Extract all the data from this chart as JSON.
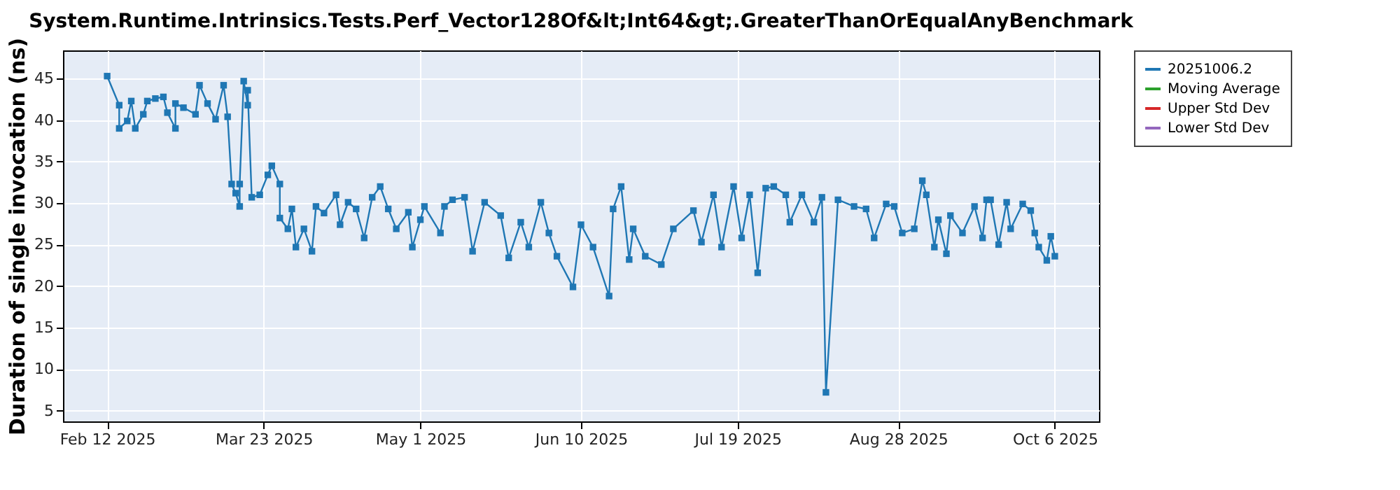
{
  "chart_data": {
    "type": "line",
    "title": "System.Runtime.Intrinsics.Tests.Perf_Vector128Of&lt;Int64&gt;.GreaterThanOrEqualAnyBenchmark",
    "ylabel": "Duration of single invocation (ns)",
    "x": [
      "2025-02-12",
      "2025-02-15",
      "2025-02-15",
      "2025-02-17",
      "2025-02-18",
      "2025-02-19",
      "2025-02-21",
      "2025-02-22",
      "2025-02-24",
      "2025-02-26",
      "2025-02-27",
      "2025-03-01",
      "2025-03-01",
      "2025-03-03",
      "2025-03-06",
      "2025-03-07",
      "2025-03-09",
      "2025-03-11",
      "2025-03-13",
      "2025-03-14",
      "2025-03-15",
      "2025-03-16",
      "2025-03-17",
      "2025-03-17",
      "2025-03-18",
      "2025-03-19",
      "2025-03-19",
      "2025-03-20",
      "2025-03-22",
      "2025-03-24",
      "2025-03-25",
      "2025-03-27",
      "2025-03-27",
      "2025-03-29",
      "2025-03-30",
      "2025-03-31",
      "2025-04-02",
      "2025-04-04",
      "2025-04-05",
      "2025-04-07",
      "2025-04-10",
      "2025-04-11",
      "2025-04-13",
      "2025-04-15",
      "2025-04-17",
      "2025-04-19",
      "2025-04-21",
      "2025-04-23",
      "2025-04-25",
      "2025-04-28",
      "2025-04-29",
      "2025-05-01",
      "2025-05-02",
      "2025-05-06",
      "2025-05-07",
      "2025-05-09",
      "2025-05-12",
      "2025-05-14",
      "2025-05-17",
      "2025-05-21",
      "2025-05-23",
      "2025-05-26",
      "2025-05-28",
      "2025-05-31",
      "2025-06-02",
      "2025-06-04",
      "2025-06-08",
      "2025-06-10",
      "2025-06-13",
      "2025-06-17",
      "2025-06-18",
      "2025-06-20",
      "2025-06-22",
      "2025-06-23",
      "2025-06-26",
      "2025-06-30",
      "2025-07-03",
      "2025-07-08",
      "2025-07-10",
      "2025-07-13",
      "2025-07-15",
      "2025-07-18",
      "2025-07-20",
      "2025-07-22",
      "2025-07-24",
      "2025-07-26",
      "2025-07-28",
      "2025-07-31",
      "2025-08-01",
      "2025-08-04",
      "2025-08-07",
      "2025-08-09",
      "2025-08-10",
      "2025-08-13",
      "2025-08-17",
      "2025-08-20",
      "2025-08-22",
      "2025-08-25",
      "2025-08-27",
      "2025-08-29",
      "2025-09-01",
      "2025-09-03",
      "2025-09-04",
      "2025-09-06",
      "2025-09-07",
      "2025-09-09",
      "2025-09-10",
      "2025-09-13",
      "2025-09-16",
      "2025-09-18",
      "2025-09-19",
      "2025-09-20",
      "2025-09-22",
      "2025-09-24",
      "2025-09-25",
      "2025-09-28",
      "2025-09-30",
      "2025-10-01",
      "2025-10-02",
      "2025-10-04",
      "2025-10-05",
      "2025-10-06"
    ],
    "series": [
      {
        "name": "20251006.2",
        "color": "#1f77b4",
        "values": [
          45.3,
          41.8,
          39.0,
          39.9,
          42.3,
          39.0,
          40.7,
          42.3,
          42.6,
          42.8,
          40.9,
          39.0,
          42.0,
          41.5,
          40.7,
          44.2,
          42.0,
          40.1,
          44.2,
          40.4,
          32.3,
          31.2,
          29.6,
          32.3,
          44.7,
          41.8,
          43.6,
          30.7,
          31.0,
          33.4,
          34.5,
          32.3,
          28.2,
          26.9,
          29.3,
          24.7,
          26.9,
          24.2,
          29.6,
          28.8,
          31.0,
          27.4,
          30.1,
          29.3,
          25.8,
          30.7,
          32.0,
          29.3,
          26.9,
          28.9,
          24.7,
          28.0,
          29.6,
          26.4,
          29.6,
          30.4,
          30.7,
          24.2,
          30.1,
          28.5,
          23.4,
          27.7,
          24.7,
          30.1,
          26.4,
          23.6,
          19.9,
          27.4,
          24.7,
          18.8,
          29.3,
          32.0,
          23.2,
          26.9,
          23.6,
          22.6,
          26.9,
          29.1,
          25.3,
          31.0,
          24.7,
          32.0,
          25.8,
          31.0,
          21.6,
          31.8,
          32.0,
          31.0,
          27.7,
          31.0,
          27.7,
          30.7,
          7.2,
          30.4,
          29.6,
          29.3,
          25.8,
          29.9,
          29.6,
          26.4,
          26.9,
          32.7,
          31.0,
          24.7,
          28.0,
          23.9,
          28.5,
          26.4,
          29.6,
          25.8,
          30.4,
          30.4,
          25.0,
          30.1,
          26.9,
          29.9,
          29.1,
          26.4,
          24.7,
          23.1,
          26.0,
          23.6
        ]
      },
      {
        "name": "Moving Average",
        "color": "#2ca02c",
        "values": [
          null,
          null,
          null,
          null,
          null,
          null,
          null,
          null,
          null,
          null,
          null,
          null,
          null,
          null,
          null,
          null,
          null,
          null,
          null,
          null,
          null,
          null,
          null,
          null,
          null,
          null,
          null,
          null,
          null,
          null,
          null,
          null,
          null,
          null,
          null,
          null,
          null,
          null,
          null,
          null,
          null,
          null,
          null,
          null,
          null,
          null,
          null,
          null,
          null,
          null,
          null,
          null,
          null,
          null,
          null,
          null,
          null,
          null,
          null,
          null,
          null,
          null,
          null,
          null,
          null,
          null,
          null,
          null,
          null,
          null,
          null,
          null,
          null,
          null,
          null,
          null,
          null,
          null,
          null,
          null,
          null,
          null,
          null,
          null,
          null,
          null,
          null,
          null,
          null,
          null,
          null,
          null,
          null,
          null,
          null,
          null,
          null,
          null,
          null,
          null,
          null,
          null,
          null,
          null,
          null,
          null,
          null,
          null,
          null,
          null,
          null,
          null,
          null,
          null,
          null,
          null,
          null,
          null,
          null,
          null,
          null,
          null
        ]
      },
      {
        "name": "Upper Std Dev",
        "color": "#d62728",
        "values": [
          null,
          null,
          null,
          null,
          null,
          null,
          null,
          null,
          null,
          null,
          null,
          null,
          null,
          null,
          null,
          null,
          null,
          null,
          null,
          null,
          null,
          null,
          null,
          null,
          null,
          null,
          null,
          null,
          null,
          null,
          null,
          null,
          null,
          null,
          null,
          null,
          null,
          null,
          null,
          null,
          null,
          null,
          null,
          null,
          null,
          null,
          null,
          null,
          null,
          null,
          null,
          null,
          null,
          null,
          null,
          null,
          null,
          null,
          null,
          null,
          null,
          null,
          null,
          null,
          null,
          null,
          null,
          null,
          null,
          null,
          null,
          null,
          null,
          null,
          null,
          null,
          null,
          null,
          null,
          null,
          null,
          null,
          null,
          null,
          null,
          null,
          null,
          null,
          null,
          null,
          null,
          null,
          null,
          null,
          null,
          null,
          null,
          null,
          null,
          null,
          null,
          null,
          null,
          null,
          null,
          null,
          null,
          null,
          null,
          null,
          null,
          null,
          null,
          null,
          null,
          null,
          null,
          null,
          null,
          null,
          null,
          null
        ]
      },
      {
        "name": "Lower Std Dev",
        "color": "#9467bd",
        "values": [
          null,
          null,
          null,
          null,
          null,
          null,
          null,
          null,
          null,
          null,
          null,
          null,
          null,
          null,
          null,
          null,
          null,
          null,
          null,
          null,
          null,
          null,
          null,
          null,
          null,
          null,
          null,
          null,
          null,
          null,
          null,
          null,
          null,
          null,
          null,
          null,
          null,
          null,
          null,
          null,
          null,
          null,
          null,
          null,
          null,
          null,
          null,
          null,
          null,
          null,
          null,
          null,
          null,
          null,
          null,
          null,
          null,
          null,
          null,
          null,
          null,
          null,
          null,
          null,
          null,
          null,
          null,
          null,
          null,
          null,
          null,
          null,
          null,
          null,
          null,
          null,
          null,
          null,
          null,
          null,
          null,
          null,
          null,
          null,
          null,
          null,
          null,
          null,
          null,
          null,
          null,
          null,
          null,
          null,
          null,
          null,
          null,
          null,
          null,
          null,
          null,
          null,
          null,
          null,
          null,
          null,
          null,
          null,
          null,
          null,
          null,
          null,
          null,
          null,
          null,
          null,
          null,
          null,
          null,
          null,
          null,
          null
        ]
      }
    ],
    "xlim": [
      "2025-02-01",
      "2025-10-17"
    ],
    "xticks": [
      {
        "value": "2025-02-12",
        "label": "Feb 12 2025"
      },
      {
        "value": "2025-03-23",
        "label": "Mar 23 2025"
      },
      {
        "value": "2025-05-01",
        "label": "May 1 2025"
      },
      {
        "value": "2025-06-10",
        "label": "Jun 10 2025"
      },
      {
        "value": "2025-07-19",
        "label": "Jul 19 2025"
      },
      {
        "value": "2025-08-28",
        "label": "Aug 28 2025"
      },
      {
        "value": "2025-10-06",
        "label": "Oct 6 2025"
      }
    ],
    "ylim": [
      3.7,
      48.4
    ],
    "yticks": [
      5,
      10,
      15,
      20,
      25,
      30,
      35,
      40,
      45
    ],
    "grid": true,
    "legend": "right",
    "marker": "square",
    "line_style": "solid"
  }
}
